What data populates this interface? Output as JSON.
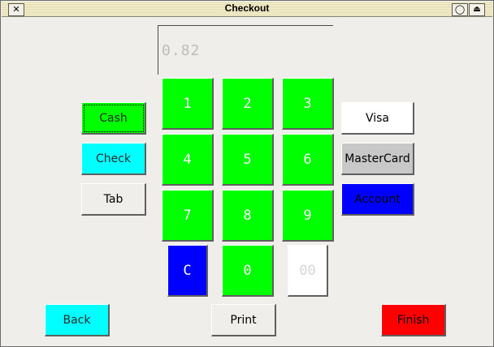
{
  "window": {
    "title": "Checkout",
    "close_glyph": "✕",
    "min_glyph": "◯",
    "max_glyph": "⏏"
  },
  "display": {
    "value": "0.82"
  },
  "payment_left": {
    "cash": "Cash",
    "check": "Check",
    "tab": "Tab"
  },
  "payment_right": {
    "visa": "Visa",
    "mastercard": "MasterCard",
    "account": "Account"
  },
  "keypad": {
    "keys": [
      "1",
      "2",
      "3",
      "4",
      "5",
      "6",
      "7",
      "8",
      "9"
    ],
    "clear": "C",
    "zero": "0",
    "double_zero": "00"
  },
  "bottom": {
    "back": "Back",
    "print": "Print",
    "finish": "Finish"
  },
  "colors": {
    "keypad_key": "#00ff00",
    "cash": "#00ff00",
    "check": "#00ffff",
    "back": "#00ffff",
    "account": "#0000ff",
    "clear": "#0000ff",
    "finish": "#ff0000",
    "mastercard": "#c8c8c8",
    "visa": "#ffffff",
    "double_zero": "#ffffff",
    "background": "#efeeea"
  }
}
